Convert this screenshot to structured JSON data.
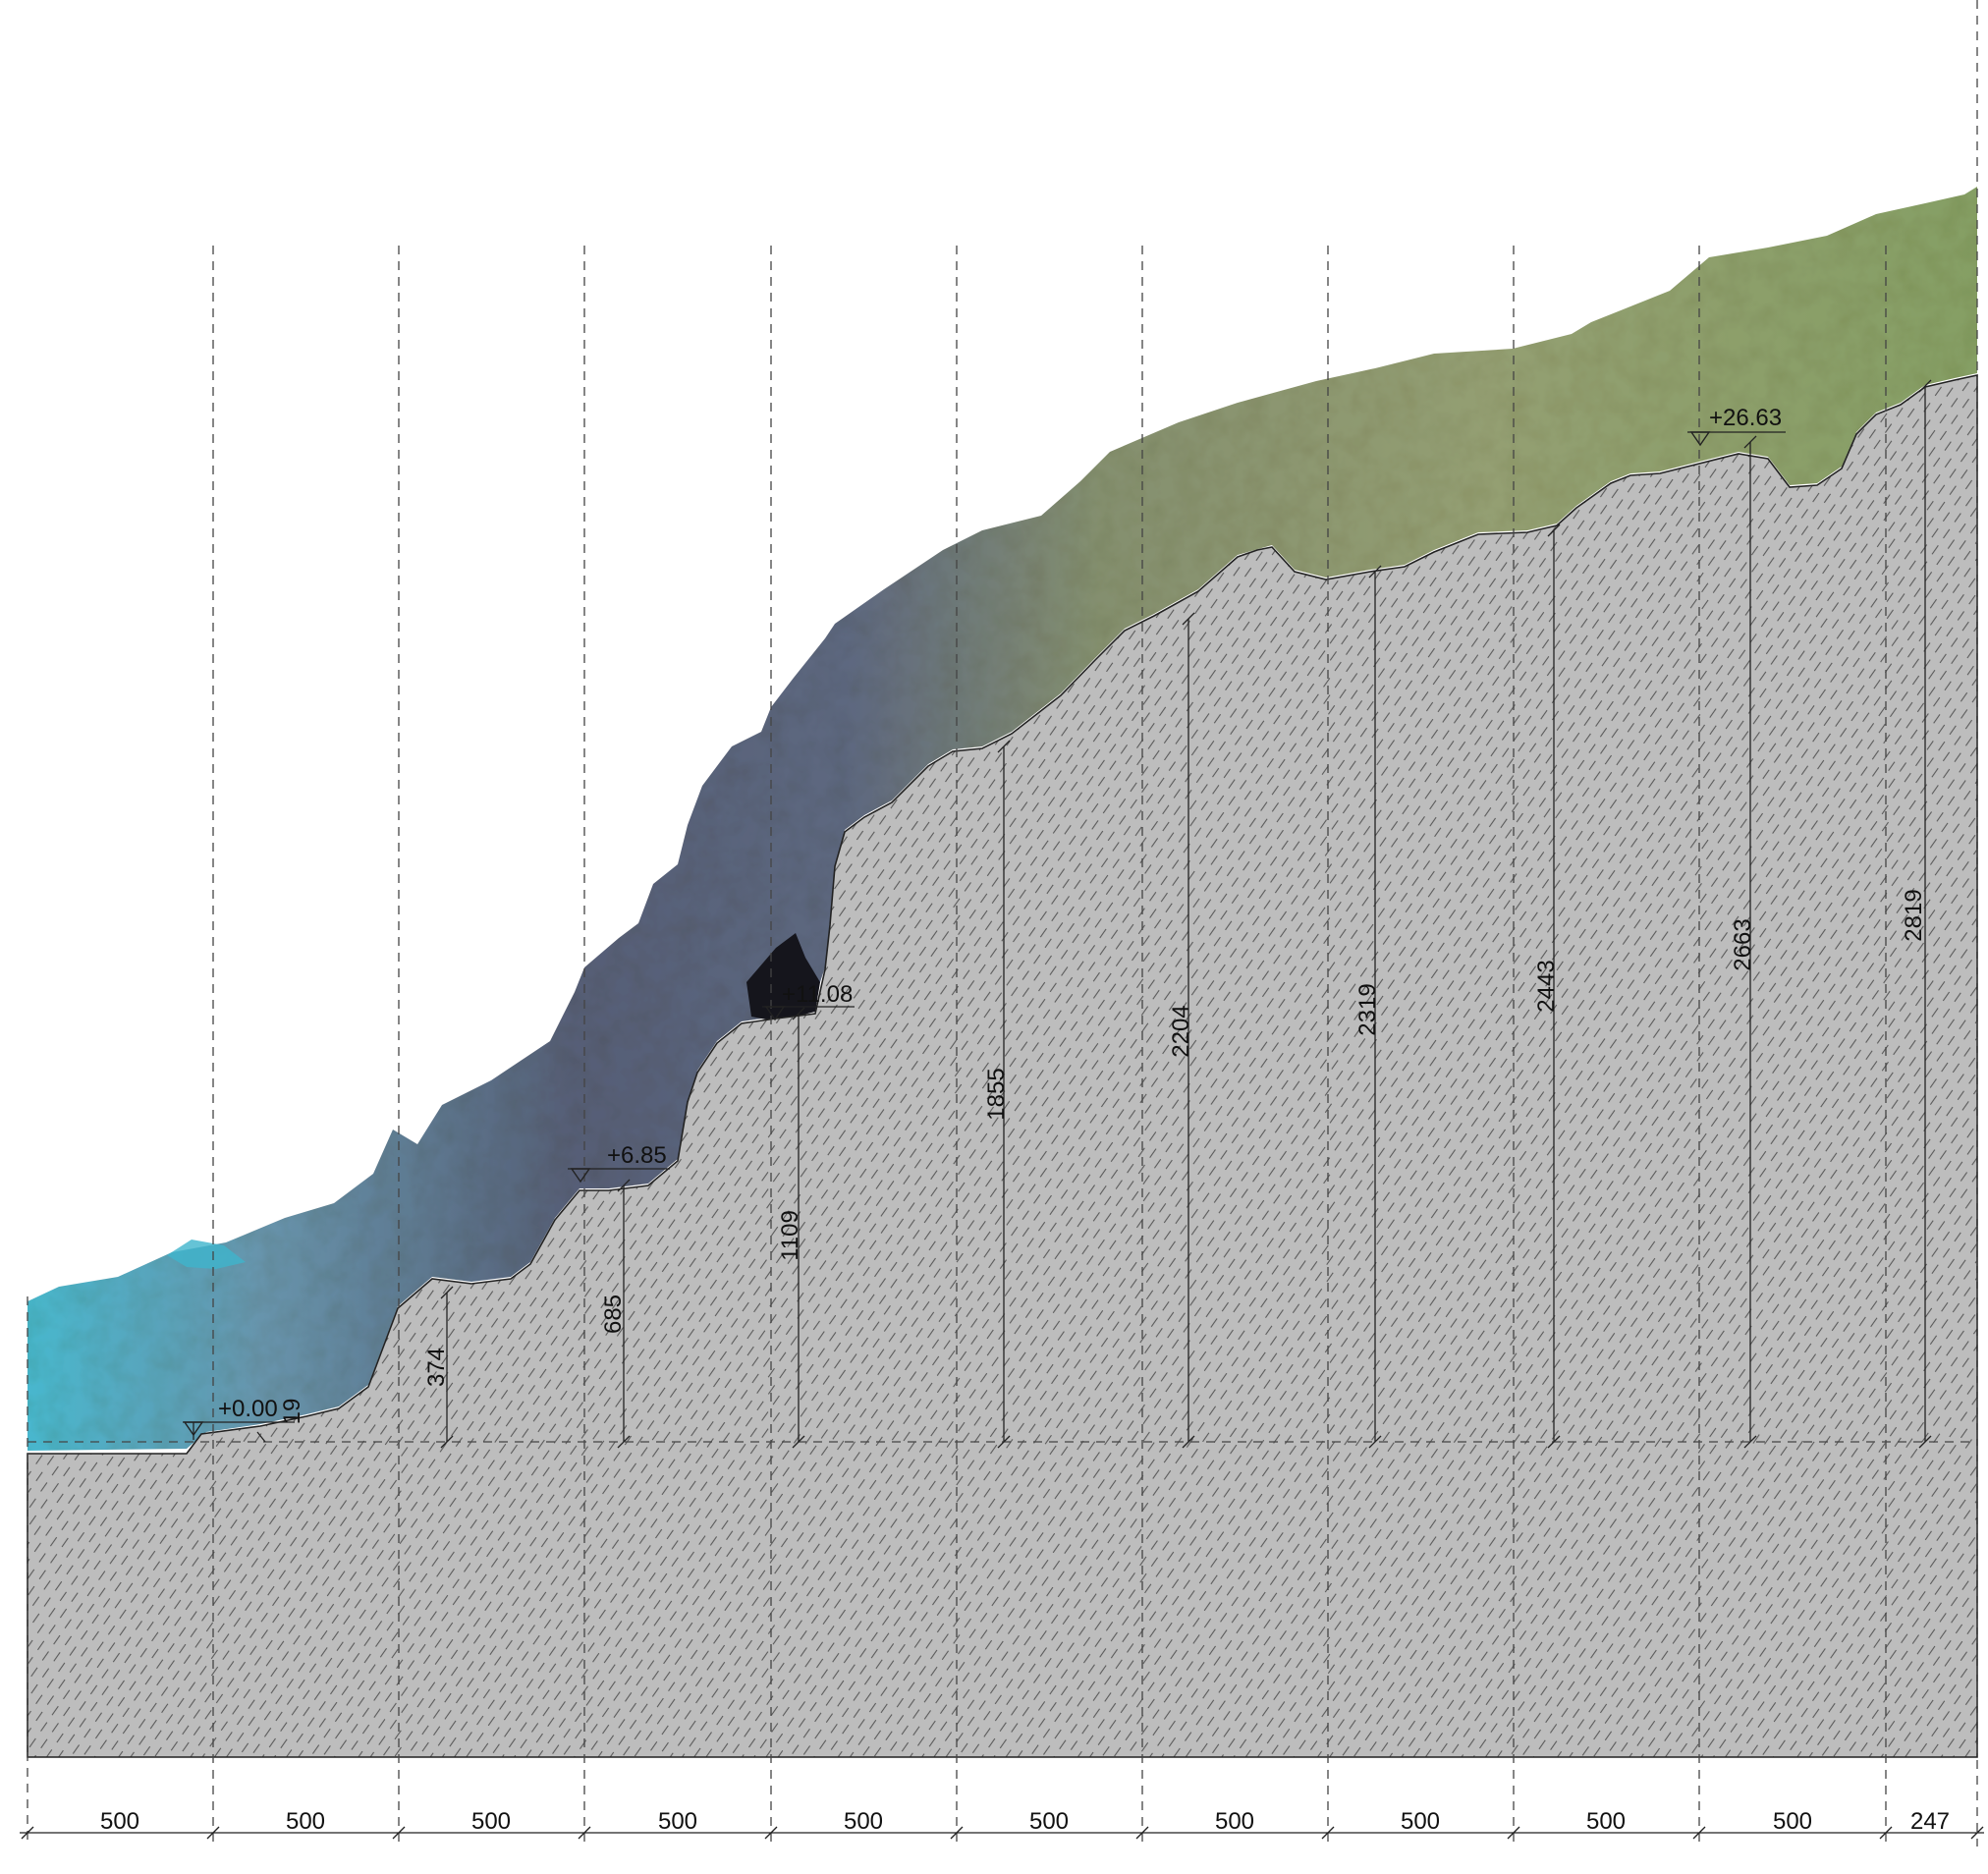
{
  "title": "",
  "colors": {
    "ground_fill": "#bdbdbd",
    "hatch": "#5a5a5a",
    "vegetation": "#8c9a66",
    "rock": "#56607a",
    "sea": "#3fb4cc",
    "line": "#222222"
  },
  "spacing_labels": [
    "500",
    "500",
    "500",
    "500",
    "500",
    "500",
    "500",
    "500",
    "500",
    "500",
    "247"
  ],
  "height_labels": [
    "374",
    "685",
    "1109",
    "1855",
    "2204",
    "2319",
    "2443",
    "2663",
    "2819"
  ],
  "elevation_markers": [
    "+0.00",
    "+6.85",
    "+11.08",
    "+26.63"
  ],
  "small_label": "19"
}
